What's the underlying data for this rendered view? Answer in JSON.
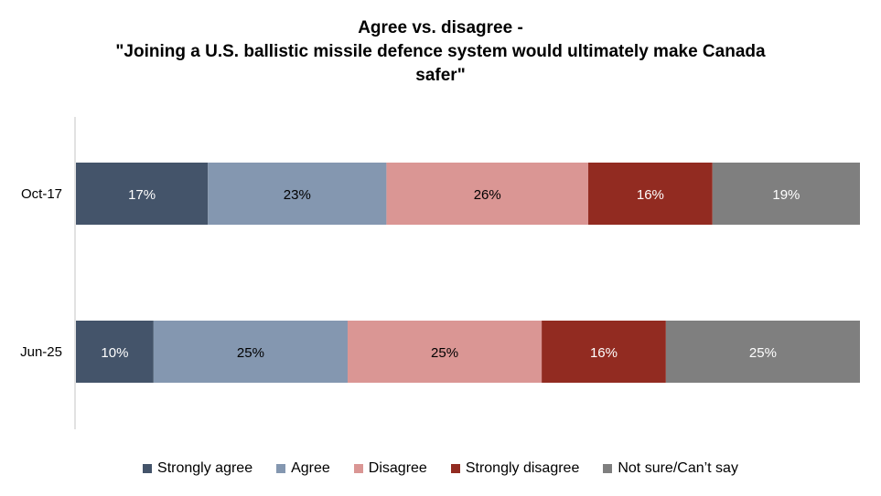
{
  "chart_data": {
    "type": "bar",
    "orientation": "horizontal-stacked-100",
    "title": [
      "Agree vs. disagree -",
      "\"Joining a U.S. ballistic missile defence system would ultimately make Canada",
      "safer\""
    ],
    "categories": [
      "Oct-17",
      "Jun-25"
    ],
    "series": [
      {
        "name": "Strongly agree",
        "color": "#44546A",
        "values": [
          17,
          10
        ],
        "labels": [
          "17%",
          "10%"
        ]
      },
      {
        "name": "Agree",
        "color": "#8497B0",
        "values": [
          23,
          25
        ],
        "labels": [
          "23%",
          "25%"
        ]
      },
      {
        "name": "Disagree",
        "color": "#DA9694",
        "values": [
          26,
          25
        ],
        "labels": [
          "26%",
          "25%"
        ]
      },
      {
        "name": "Strongly disagree",
        "color": "#922B21",
        "values": [
          16,
          16
        ],
        "labels": [
          "16%",
          "16%"
        ]
      },
      {
        "name": "Not sure/Can’t say",
        "color": "#7F7F7F",
        "values": [
          19,
          25
        ],
        "labels": [
          "19%",
          "25%"
        ]
      }
    ],
    "label_colors": [
      "#FFFFFF",
      "#000000",
      "#000000",
      "#FFFFFF",
      "#FFFFFF"
    ],
    "legend_position": "bottom",
    "grid": false
  }
}
